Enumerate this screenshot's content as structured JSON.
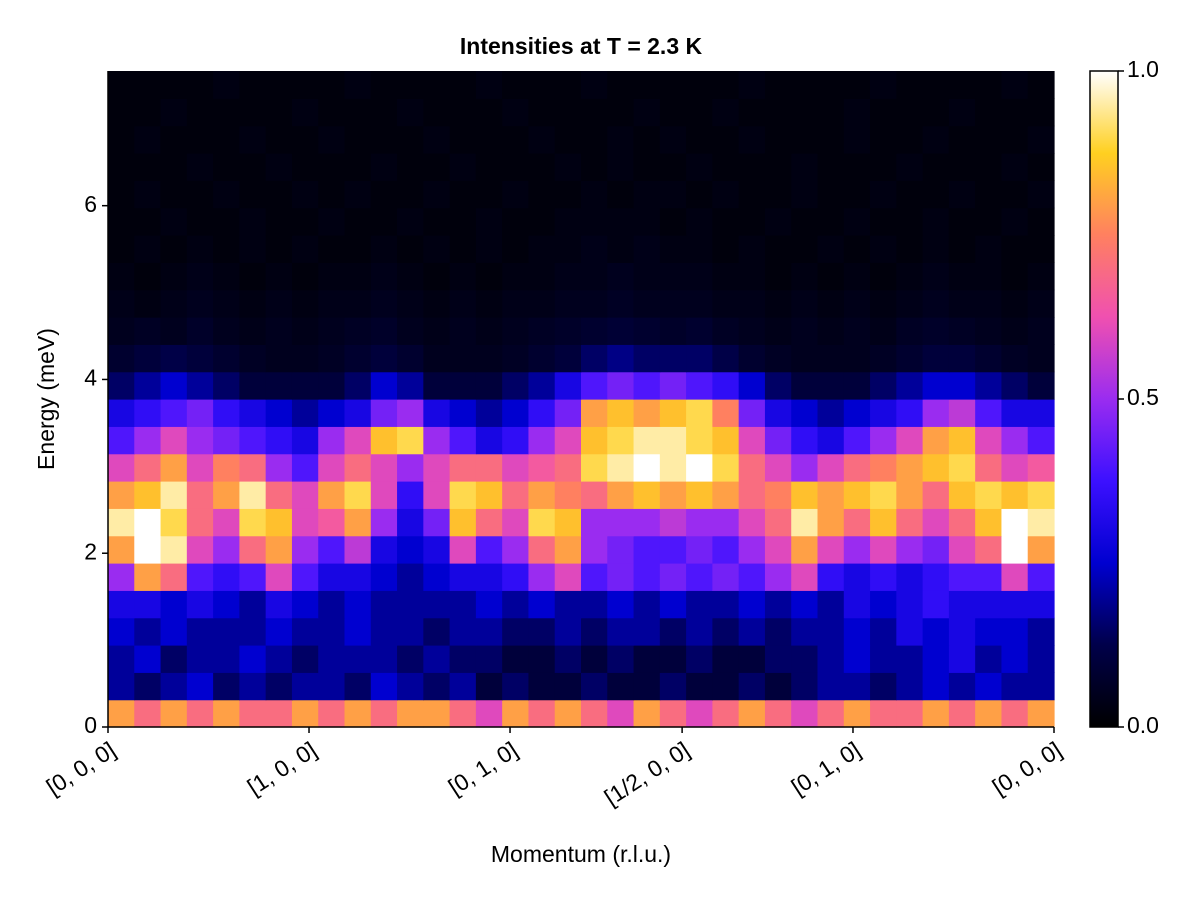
{
  "chart_data": {
    "type": "heatmap",
    "title": "Intensities at T = 2.3 K",
    "xlabel": "Momentum (r.l.u.)",
    "ylabel": "Energy (meV)",
    "xlim": [
      0,
      4.706
    ],
    "ylim": [
      0,
      7.55
    ],
    "xticks": [
      {
        "value": 0,
        "label": "[0, 0, 0]"
      },
      {
        "value": 1,
        "label": "[1, 0, 0]"
      },
      {
        "value": 2,
        "label": "[0, 1, 0]"
      },
      {
        "value": 2.856,
        "label": "[1/2, 0, 0]"
      },
      {
        "value": 3.706,
        "label": "[0, 1, 0]"
      },
      {
        "value": 4.706,
        "label": "[0, 0, 0]"
      }
    ],
    "yticks": [
      0,
      2,
      4,
      6
    ],
    "clim": [
      0,
      1
    ],
    "cticks": [
      {
        "value": 0,
        "label": "0.0"
      },
      {
        "value": 0.5,
        "label": "0.5"
      },
      {
        "value": 1,
        "label": "1.0"
      }
    ],
    "colormap": [
      "#000000",
      "#00004a",
      "#0000d0",
      "#3c10ff",
      "#9a2cf0",
      "#f050b0",
      "#ff8060",
      "#ffd020",
      "#ffffff"
    ],
    "z": [
      [
        0.8,
        0.7,
        0.8,
        0.7,
        0.8,
        0.7,
        0.7,
        0.8,
        0.7,
        0.8,
        0.7,
        0.8,
        0.8,
        0.7,
        0.6,
        0.8,
        0.7,
        0.8,
        0.7,
        0.6,
        0.8,
        0.7,
        0.6,
        0.7,
        0.8,
        0.7,
        0.6,
        0.7,
        0.8,
        0.7,
        0.7,
        0.8,
        0.7,
        0.8,
        0.7,
        0.8
      ],
      [
        0.2,
        0.15,
        0.2,
        0.25,
        0.15,
        0.2,
        0.15,
        0.2,
        0.2,
        0.15,
        0.25,
        0.2,
        0.15,
        0.2,
        0.1,
        0.15,
        0.1,
        0.1,
        0.15,
        0.1,
        0.1,
        0.15,
        0.1,
        0.1,
        0.15,
        0.1,
        0.15,
        0.2,
        0.2,
        0.15,
        0.2,
        0.25,
        0.2,
        0.25,
        0.2,
        0.2
      ],
      [
        0.2,
        0.25,
        0.15,
        0.2,
        0.2,
        0.25,
        0.2,
        0.15,
        0.2,
        0.2,
        0.2,
        0.15,
        0.2,
        0.15,
        0.15,
        0.1,
        0.1,
        0.15,
        0.1,
        0.15,
        0.1,
        0.1,
        0.15,
        0.1,
        0.1,
        0.15,
        0.15,
        0.2,
        0.25,
        0.2,
        0.2,
        0.25,
        0.3,
        0.2,
        0.25,
        0.2
      ],
      [
        0.25,
        0.2,
        0.25,
        0.2,
        0.2,
        0.2,
        0.25,
        0.2,
        0.2,
        0.25,
        0.2,
        0.2,
        0.15,
        0.2,
        0.2,
        0.15,
        0.15,
        0.2,
        0.15,
        0.2,
        0.2,
        0.15,
        0.2,
        0.15,
        0.2,
        0.15,
        0.2,
        0.2,
        0.25,
        0.2,
        0.3,
        0.25,
        0.3,
        0.25,
        0.25,
        0.2
      ],
      [
        0.3,
        0.3,
        0.25,
        0.3,
        0.25,
        0.2,
        0.3,
        0.25,
        0.2,
        0.25,
        0.2,
        0.2,
        0.2,
        0.2,
        0.25,
        0.2,
        0.25,
        0.2,
        0.2,
        0.25,
        0.2,
        0.25,
        0.2,
        0.2,
        0.25,
        0.2,
        0.25,
        0.2,
        0.3,
        0.25,
        0.3,
        0.35,
        0.3,
        0.3,
        0.3,
        0.3
      ],
      [
        0.5,
        0.8,
        0.7,
        0.4,
        0.35,
        0.4,
        0.6,
        0.4,
        0.3,
        0.3,
        0.25,
        0.2,
        0.25,
        0.3,
        0.3,
        0.35,
        0.5,
        0.6,
        0.4,
        0.45,
        0.4,
        0.45,
        0.4,
        0.45,
        0.4,
        0.5,
        0.6,
        0.35,
        0.3,
        0.35,
        0.3,
        0.35,
        0.4,
        0.4,
        0.6,
        0.4
      ],
      [
        0.8,
        1.0,
        0.95,
        0.6,
        0.5,
        0.7,
        0.8,
        0.5,
        0.4,
        0.55,
        0.3,
        0.25,
        0.3,
        0.6,
        0.4,
        0.5,
        0.7,
        0.8,
        0.5,
        0.45,
        0.4,
        0.4,
        0.45,
        0.4,
        0.5,
        0.6,
        0.8,
        0.6,
        0.5,
        0.6,
        0.5,
        0.45,
        0.6,
        0.7,
        1.0,
        0.8
      ],
      [
        0.95,
        1.0,
        0.9,
        0.7,
        0.6,
        0.9,
        0.85,
        0.6,
        0.65,
        0.8,
        0.5,
        0.3,
        0.45,
        0.85,
        0.7,
        0.6,
        0.9,
        0.85,
        0.5,
        0.5,
        0.5,
        0.55,
        0.5,
        0.5,
        0.6,
        0.7,
        0.95,
        0.8,
        0.7,
        0.85,
        0.7,
        0.6,
        0.7,
        0.85,
        1.0,
        0.95
      ],
      [
        0.8,
        0.85,
        0.95,
        0.7,
        0.8,
        0.95,
        0.7,
        0.6,
        0.8,
        0.9,
        0.6,
        0.35,
        0.6,
        0.9,
        0.85,
        0.7,
        0.8,
        0.75,
        0.7,
        0.8,
        0.85,
        0.8,
        0.85,
        0.8,
        0.7,
        0.75,
        0.85,
        0.8,
        0.85,
        0.9,
        0.8,
        0.7,
        0.85,
        0.9,
        0.85,
        0.9
      ],
      [
        0.6,
        0.7,
        0.8,
        0.6,
        0.75,
        0.7,
        0.5,
        0.4,
        0.6,
        0.7,
        0.6,
        0.5,
        0.6,
        0.7,
        0.7,
        0.6,
        0.65,
        0.7,
        0.9,
        0.95,
        1.0,
        0.95,
        1.0,
        0.9,
        0.7,
        0.6,
        0.5,
        0.6,
        0.7,
        0.75,
        0.8,
        0.85,
        0.9,
        0.7,
        0.6,
        0.65
      ],
      [
        0.4,
        0.5,
        0.6,
        0.5,
        0.45,
        0.4,
        0.35,
        0.3,
        0.5,
        0.6,
        0.85,
        0.9,
        0.5,
        0.4,
        0.3,
        0.35,
        0.5,
        0.6,
        0.85,
        0.9,
        0.95,
        0.95,
        0.9,
        0.85,
        0.6,
        0.45,
        0.35,
        0.3,
        0.4,
        0.5,
        0.6,
        0.8,
        0.85,
        0.6,
        0.5,
        0.4
      ],
      [
        0.3,
        0.35,
        0.4,
        0.45,
        0.35,
        0.3,
        0.25,
        0.2,
        0.25,
        0.3,
        0.45,
        0.5,
        0.3,
        0.25,
        0.2,
        0.25,
        0.35,
        0.45,
        0.8,
        0.85,
        0.8,
        0.85,
        0.9,
        0.75,
        0.45,
        0.3,
        0.25,
        0.2,
        0.25,
        0.3,
        0.35,
        0.5,
        0.55,
        0.4,
        0.3,
        0.3
      ],
      [
        0.15,
        0.2,
        0.25,
        0.2,
        0.15,
        0.1,
        0.1,
        0.1,
        0.1,
        0.15,
        0.25,
        0.2,
        0.1,
        0.1,
        0.1,
        0.15,
        0.2,
        0.3,
        0.4,
        0.45,
        0.4,
        0.45,
        0.4,
        0.35,
        0.25,
        0.15,
        0.1,
        0.1,
        0.1,
        0.15,
        0.2,
        0.25,
        0.25,
        0.2,
        0.15,
        0.1
      ],
      [
        0.08,
        0.1,
        0.12,
        0.1,
        0.08,
        0.06,
        0.05,
        0.05,
        0.06,
        0.08,
        0.1,
        0.08,
        0.05,
        0.05,
        0.05,
        0.06,
        0.08,
        0.1,
        0.15,
        0.18,
        0.15,
        0.15,
        0.15,
        0.12,
        0.08,
        0.06,
        0.05,
        0.05,
        0.05,
        0.06,
        0.08,
        0.1,
        0.1,
        0.08,
        0.06,
        0.05
      ],
      [
        0.05,
        0.06,
        0.05,
        0.07,
        0.05,
        0.04,
        0.05,
        0.04,
        0.05,
        0.06,
        0.07,
        0.05,
        0.04,
        0.05,
        0.04,
        0.05,
        0.06,
        0.07,
        0.08,
        0.09,
        0.08,
        0.07,
        0.08,
        0.06,
        0.05,
        0.04,
        0.05,
        0.04,
        0.05,
        0.04,
        0.06,
        0.07,
        0.06,
        0.05,
        0.04,
        0.05
      ],
      [
        0.04,
        0.03,
        0.04,
        0.05,
        0.04,
        0.03,
        0.04,
        0.03,
        0.04,
        0.04,
        0.05,
        0.04,
        0.03,
        0.04,
        0.03,
        0.04,
        0.04,
        0.05,
        0.05,
        0.06,
        0.05,
        0.05,
        0.05,
        0.04,
        0.04,
        0.03,
        0.04,
        0.03,
        0.04,
        0.03,
        0.04,
        0.05,
        0.04,
        0.04,
        0.03,
        0.04
      ],
      [
        0.03,
        0.02,
        0.03,
        0.04,
        0.03,
        0.02,
        0.03,
        0.02,
        0.03,
        0.03,
        0.04,
        0.03,
        0.02,
        0.03,
        0.02,
        0.03,
        0.03,
        0.04,
        0.04,
        0.05,
        0.04,
        0.04,
        0.04,
        0.03,
        0.03,
        0.02,
        0.03,
        0.02,
        0.03,
        0.02,
        0.03,
        0.04,
        0.03,
        0.03,
        0.02,
        0.03
      ],
      [
        0.02,
        0.03,
        0.02,
        0.03,
        0.02,
        0.03,
        0.02,
        0.03,
        0.02,
        0.02,
        0.03,
        0.02,
        0.03,
        0.02,
        0.03,
        0.02,
        0.03,
        0.03,
        0.04,
        0.03,
        0.04,
        0.03,
        0.03,
        0.02,
        0.03,
        0.02,
        0.02,
        0.03,
        0.02,
        0.03,
        0.02,
        0.03,
        0.02,
        0.03,
        0.02,
        0.02
      ],
      [
        0.02,
        0.02,
        0.03,
        0.02,
        0.02,
        0.03,
        0.02,
        0.02,
        0.03,
        0.02,
        0.02,
        0.03,
        0.02,
        0.02,
        0.03,
        0.02,
        0.02,
        0.03,
        0.03,
        0.03,
        0.03,
        0.02,
        0.03,
        0.02,
        0.02,
        0.03,
        0.02,
        0.02,
        0.03,
        0.02,
        0.02,
        0.03,
        0.02,
        0.02,
        0.03,
        0.02
      ],
      [
        0.02,
        0.03,
        0.02,
        0.02,
        0.03,
        0.02,
        0.02,
        0.03,
        0.02,
        0.03,
        0.02,
        0.02,
        0.03,
        0.02,
        0.02,
        0.03,
        0.02,
        0.02,
        0.03,
        0.02,
        0.03,
        0.03,
        0.02,
        0.03,
        0.02,
        0.02,
        0.03,
        0.02,
        0.02,
        0.03,
        0.02,
        0.02,
        0.03,
        0.02,
        0.02,
        0.03
      ],
      [
        0.02,
        0.02,
        0.02,
        0.03,
        0.02,
        0.02,
        0.03,
        0.02,
        0.02,
        0.02,
        0.03,
        0.02,
        0.02,
        0.03,
        0.02,
        0.02,
        0.02,
        0.03,
        0.02,
        0.03,
        0.02,
        0.02,
        0.03,
        0.02,
        0.02,
        0.02,
        0.03,
        0.02,
        0.02,
        0.02,
        0.03,
        0.02,
        0.02,
        0.02,
        0.03,
        0.02
      ],
      [
        0.02,
        0.03,
        0.02,
        0.02,
        0.02,
        0.03,
        0.02,
        0.02,
        0.03,
        0.02,
        0.02,
        0.02,
        0.03,
        0.02,
        0.02,
        0.02,
        0.03,
        0.02,
        0.02,
        0.03,
        0.02,
        0.03,
        0.02,
        0.02,
        0.03,
        0.02,
        0.02,
        0.02,
        0.03,
        0.02,
        0.02,
        0.03,
        0.02,
        0.02,
        0.02,
        0.03
      ],
      [
        0.02,
        0.02,
        0.03,
        0.02,
        0.02,
        0.02,
        0.02,
        0.03,
        0.02,
        0.02,
        0.02,
        0.03,
        0.02,
        0.02,
        0.02,
        0.03,
        0.02,
        0.02,
        0.02,
        0.02,
        0.03,
        0.02,
        0.02,
        0.03,
        0.02,
        0.02,
        0.02,
        0.02,
        0.03,
        0.02,
        0.02,
        0.02,
        0.03,
        0.02,
        0.02,
        0.02
      ],
      [
        0.02,
        0.02,
        0.02,
        0.02,
        0.03,
        0.02,
        0.02,
        0.02,
        0.02,
        0.03,
        0.02,
        0.02,
        0.02,
        0.02,
        0.03,
        0.02,
        0.02,
        0.02,
        0.03,
        0.02,
        0.02,
        0.02,
        0.02,
        0.02,
        0.03,
        0.02,
        0.02,
        0.02,
        0.02,
        0.03,
        0.02,
        0.02,
        0.02,
        0.02,
        0.03,
        0.02
      ]
    ]
  }
}
